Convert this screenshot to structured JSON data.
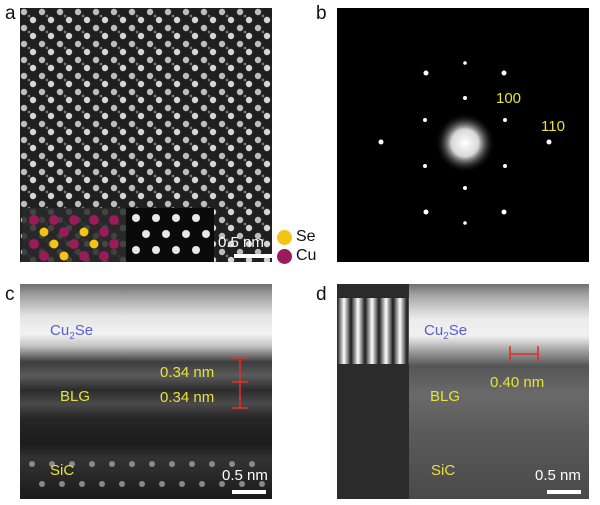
{
  "panels": {
    "a": {
      "letter": "a",
      "scale": "0.5 nm"
    },
    "b": {
      "letter": "b",
      "spot1": "100",
      "spot2": "110"
    },
    "c": {
      "letter": "c",
      "top": "Cu",
      "top_sub": "2",
      "top_end": "Se",
      "d1": "0.34 nm",
      "d2": "0.34 nm",
      "mid": "BLG",
      "bot": "SiC",
      "scale": "0.5 nm"
    },
    "d": {
      "letter": "d",
      "top": "Cu",
      "top_sub": "2",
      "top_end": "Se",
      "d1": "0.40 nm",
      "mid": "BLG",
      "bot": "SiC",
      "scale": "0.5 nm"
    }
  },
  "legend": {
    "se": "Se",
    "cu": "Cu"
  },
  "colors": {
    "se": "#f3c414",
    "cu": "#9b1b5a",
    "label": "#e8e23a",
    "marker": "#e0302a"
  }
}
